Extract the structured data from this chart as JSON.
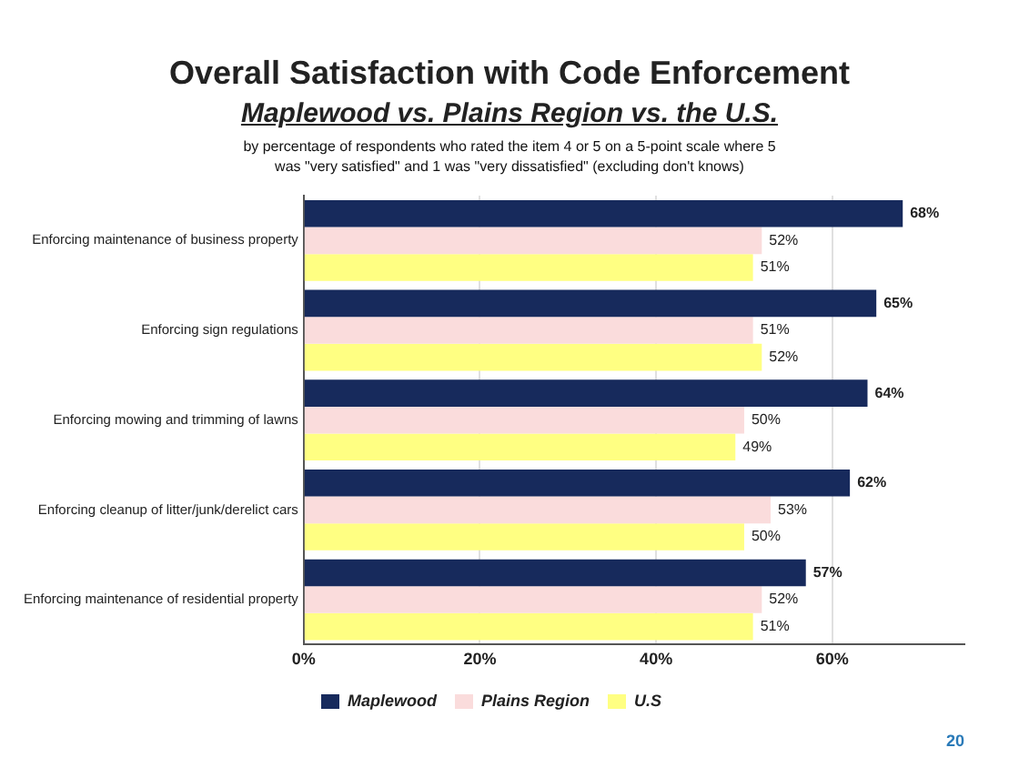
{
  "chart_data": {
    "type": "bar",
    "orientation": "horizontal",
    "title": "Overall Satisfaction with Code Enforcement",
    "subtitle": "Maplewood vs. Plains Region vs. the U.S.",
    "annotations": [
      "by percentage of respondents who rated the item 4 or 5 on a 5-point scale where 5 was \"very satisfied\" and 1 was \"very dissatisfied\" (excluding don't knows)",
      "20"
    ],
    "categories": [
      "Enforcing maintenance of business property",
      "Enforcing sign regulations",
      "Enforcing mowing and trimming of lawns",
      "Enforcing cleanup of litter/junk/derelict cars",
      "Enforcing maintenance of residential property"
    ],
    "series": [
      {
        "name": "Maplewood",
        "color": "#172a5c",
        "values": [
          68,
          65,
          64,
          62,
          57
        ],
        "value_labels": [
          "68%",
          "65%",
          "64%",
          "62%",
          "57%"
        ]
      },
      {
        "name": "Plains Region",
        "color": "#fadcdc",
        "values": [
          52,
          51,
          50,
          53,
          52
        ],
        "value_labels": [
          "52%",
          "51%",
          "50%",
          "53%",
          "52%"
        ]
      },
      {
        "name": "U.S",
        "color": "#ffff82",
        "values": [
          51,
          52,
          49,
          50,
          51
        ],
        "value_labels": [
          "51%",
          "52%",
          "49%",
          "50%",
          "51%"
        ]
      }
    ],
    "xlim": [
      0,
      75
    ],
    "xticks": [
      {
        "value": 0,
        "label": "0%"
      },
      {
        "value": 20,
        "label": "20%"
      },
      {
        "value": 40,
        "label": "40%"
      },
      {
        "value": 60,
        "label": "60%"
      }
    ],
    "grid": "x",
    "legend": "bottom"
  }
}
